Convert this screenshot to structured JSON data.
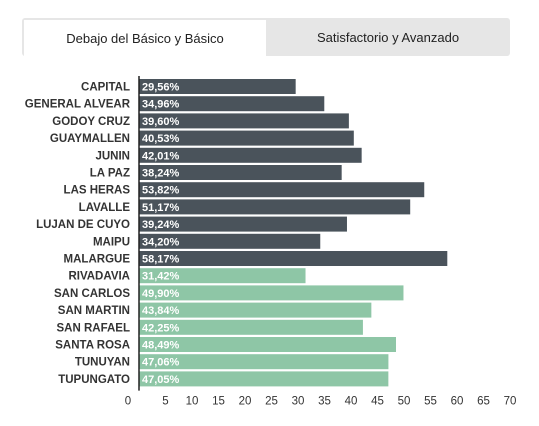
{
  "tabs": [
    {
      "label": "Debajo del Básico y Básico",
      "active": true
    },
    {
      "label": "Satisfactorio y Avanzado",
      "active": false
    }
  ],
  "colors": {
    "dark_bar": "#4a535b",
    "green_bar": "#8ec6a6",
    "axis": "#222222",
    "tab_bg": "#e6e6e6"
  },
  "chart_data": {
    "type": "bar",
    "orientation": "horizontal",
    "categories": [
      "CAPITAL",
      "GENERAL ALVEAR",
      "GODOY CRUZ",
      "GUAYMALLEN",
      "JUNIN",
      "LA PAZ",
      "LAS HERAS",
      "LAVALLE",
      "LUJAN DE CUYO",
      "MAIPU",
      "MALARGUE",
      "RIVADAVIA",
      "SAN CARLOS",
      "SAN MARTIN",
      "SAN RAFAEL",
      "SANTA ROSA",
      "TUNUYAN",
      "TUPUNGATO"
    ],
    "values": [
      29.56,
      34.96,
      39.6,
      40.53,
      42.01,
      38.24,
      53.82,
      51.17,
      39.24,
      34.2,
      58.17,
      31.42,
      49.9,
      43.84,
      42.25,
      48.49,
      47.06,
      47.05
    ],
    "value_labels": [
      "29,56%",
      "34,96%",
      "39,60%",
      "40,53%",
      "42,01%",
      "38,24%",
      "53,82%",
      "51,17%",
      "39,24%",
      "34,20%",
      "58,17%",
      "31,42%",
      "49,90%",
      "43,84%",
      "42,25%",
      "48,49%",
      "47,06%",
      "47,05%"
    ],
    "bar_colors": [
      "#4a535b",
      "#4a535b",
      "#4a535b",
      "#4a535b",
      "#4a535b",
      "#4a535b",
      "#4a535b",
      "#4a535b",
      "#4a535b",
      "#4a535b",
      "#4a535b",
      "#8ec6a6",
      "#8ec6a6",
      "#8ec6a6",
      "#8ec6a6",
      "#8ec6a6",
      "#8ec6a6",
      "#8ec6a6"
    ],
    "xticks": [
      "0",
      "5",
      "10",
      "15",
      "20",
      "25",
      "30",
      "35",
      "40",
      "45",
      "50",
      "55",
      "60",
      "65",
      "70"
    ],
    "xlim": [
      0,
      70
    ],
    "grid": false,
    "title": "",
    "xlabel": "",
    "ylabel": ""
  }
}
